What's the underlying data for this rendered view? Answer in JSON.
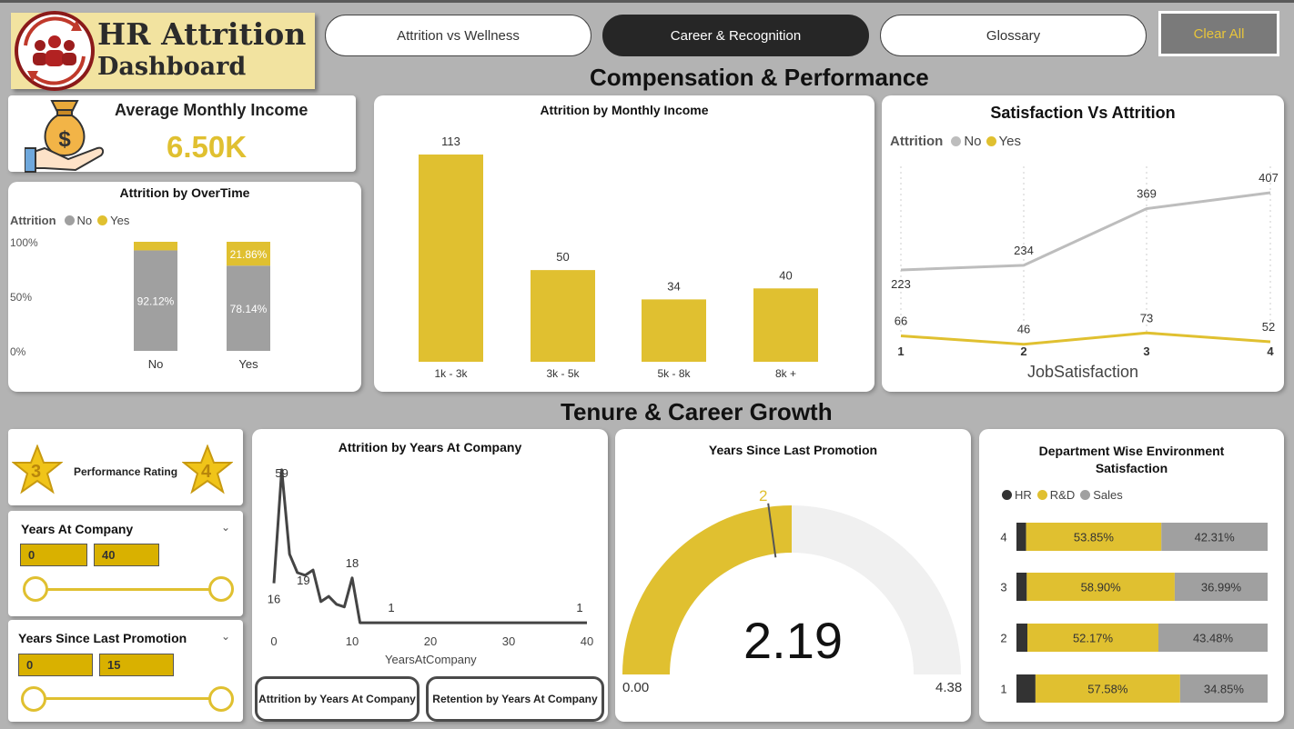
{
  "logo": {
    "line1": "HR Attrition",
    "line2": "Dashboard"
  },
  "nav": [
    {
      "label": "Attrition vs Wellness",
      "active": false
    },
    {
      "label": "Career & Recognition",
      "active": true
    },
    {
      "label": "Glossary",
      "active": false
    }
  ],
  "clear_all": "Clear All",
  "sections": {
    "compensation": "Compensation & Performance",
    "tenure": "Tenure & Career Growth"
  },
  "colors": {
    "yes": "#e0c030",
    "no": "#a0a0a0",
    "line_no": "#bdbdbd",
    "hr": "#333333"
  },
  "kpi": {
    "title": "Average Monthly Income",
    "value": "6.50K",
    "icon": "money-bag-icon"
  },
  "overtime": {
    "title": "Attrition by OverTime",
    "legend_title": "Attrition",
    "legend": [
      "No",
      "Yes"
    ],
    "y_ticks": [
      "100%",
      "50%",
      "0%"
    ]
  },
  "income": {
    "title": "Attrition by Monthly Income"
  },
  "satisfaction": {
    "title": "Satisfaction Vs Attrition",
    "legend_title": "Attrition",
    "legend": [
      "No",
      "Yes"
    ],
    "x_title": "JobSatisfaction"
  },
  "performance": {
    "label": "Performance Rating",
    "low": "3",
    "high": "4"
  },
  "slicer_years": {
    "title": "Years At Company",
    "min": "0",
    "max": "40"
  },
  "slicer_promo": {
    "title": "Years Since Last Promotion",
    "min": "0",
    "max": "15"
  },
  "years_company": {
    "title": "Attrition by Years At Company",
    "x_title": "YearsAtCompany",
    "btn_attrition": "Attrition by Years At Company",
    "btn_retention": "Retention by Years At Company"
  },
  "promotion": {
    "title": "Years Since Last Promotion",
    "value": "2.19",
    "min": "0.00",
    "max": "4.38",
    "target": "2"
  },
  "dept": {
    "title_line1": "Department Wise Environment",
    "title_line2": "Satisfaction",
    "legend": [
      "HR",
      "R&D",
      "Sales"
    ]
  },
  "chart_data": [
    {
      "type": "bar",
      "stacked": true,
      "percent": true,
      "title": "Attrition by OverTime",
      "categories": [
        "No",
        "Yes"
      ],
      "series": [
        {
          "name": "No",
          "values": [
            92.12,
            78.14
          ],
          "labels": [
            "92.12%",
            "78.14%"
          ]
        },
        {
          "name": "Yes",
          "values": [
            7.88,
            21.86
          ],
          "labels": [
            "",
            "21.86%"
          ]
        }
      ],
      "ylim": [
        0,
        100
      ]
    },
    {
      "type": "bar",
      "title": "Attrition by Monthly Income",
      "categories": [
        "1k - 3k",
        "3k - 5k",
        "5k - 8k",
        "8k +"
      ],
      "values": [
        113,
        50,
        34,
        40
      ]
    },
    {
      "type": "line",
      "title": "Satisfaction Vs Attrition",
      "xlabel": "JobSatisfaction",
      "x": [
        "1",
        "2",
        "3",
        "4"
      ],
      "series": [
        {
          "name": "No",
          "values": [
            223,
            234,
            369,
            407
          ]
        },
        {
          "name": "Yes",
          "values": [
            66,
            46,
            73,
            52
          ]
        }
      ]
    },
    {
      "type": "line",
      "title": "Attrition by Years At Company",
      "xlabel": "YearsAtCompany",
      "x": [
        0,
        1,
        2,
        3,
        4,
        5,
        6,
        7,
        8,
        9,
        10,
        11,
        12,
        13,
        14,
        15,
        16,
        17,
        18,
        19,
        20,
        21,
        22,
        23,
        24,
        25,
        26,
        27,
        28,
        29,
        30,
        31,
        32,
        33,
        34,
        35,
        36,
        37,
        38,
        39,
        40
      ],
      "values": [
        16,
        59,
        27,
        20,
        19,
        21,
        9,
        11,
        8,
        7,
        18,
        1,
        1,
        1,
        1,
        1,
        1,
        1,
        1,
        1,
        1,
        1,
        1,
        1,
        1,
        1,
        1,
        1,
        1,
        1,
        1,
        1,
        1,
        1,
        1,
        1,
        1,
        1,
        1,
        1,
        1
      ],
      "point_labels": {
        "0": "16",
        "1": "59",
        "4": "19",
        "10": "18",
        "15": "1",
        "40": "1"
      },
      "x_ticks": [
        "0",
        "10",
        "20",
        "30",
        "40"
      ]
    },
    {
      "type": "gauge",
      "title": "Years Since Last Promotion",
      "value": 2.19,
      "min": 0,
      "max": 4.38,
      "target": 2
    },
    {
      "type": "bar",
      "orientation": "horizontal",
      "stacked": true,
      "percent": true,
      "title": "Department Wise Environment Satisfaction",
      "categories": [
        "4",
        "3",
        "2",
        "1"
      ],
      "series": [
        {
          "name": "HR",
          "values": [
            3.84,
            4.11,
            4.35,
            7.57
          ]
        },
        {
          "name": "R&D",
          "values": [
            53.85,
            58.9,
            52.17,
            57.58
          ],
          "labels": [
            "53.85%",
            "58.90%",
            "52.17%",
            "57.58%"
          ]
        },
        {
          "name": "Sales",
          "values": [
            42.31,
            36.99,
            43.48,
            34.85
          ],
          "labels": [
            "42.31%",
            "36.99%",
            "43.48%",
            "34.85%"
          ]
        }
      ]
    }
  ]
}
